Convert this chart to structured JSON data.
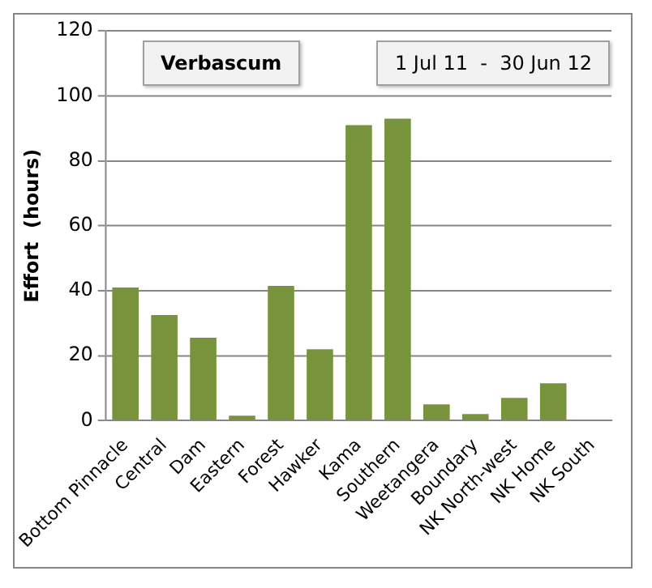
{
  "chart_data": {
    "type": "bar",
    "title": "Verbascum",
    "annotations": [
      "1 Jul 11  -  30 Jun 12"
    ],
    "ylabel": "Effort  (hours)",
    "categories": [
      "Bottom Pinnacle",
      "Central",
      "Dam",
      "Eastern",
      "Forest",
      "Hawker",
      "Kama",
      "Southern",
      "Weetangera",
      "Boundary",
      "NK North-west",
      "NK Home",
      "NK South"
    ],
    "values": [
      41,
      32.5,
      25.5,
      1.5,
      41.5,
      22,
      91,
      93,
      5,
      2,
      7,
      11.5,
      0
    ],
    "color": "#77933c",
    "ylim": [
      0,
      120
    ],
    "yticks": [
      0,
      20,
      40,
      60,
      80,
      100,
      120
    ],
    "grid": "y"
  }
}
